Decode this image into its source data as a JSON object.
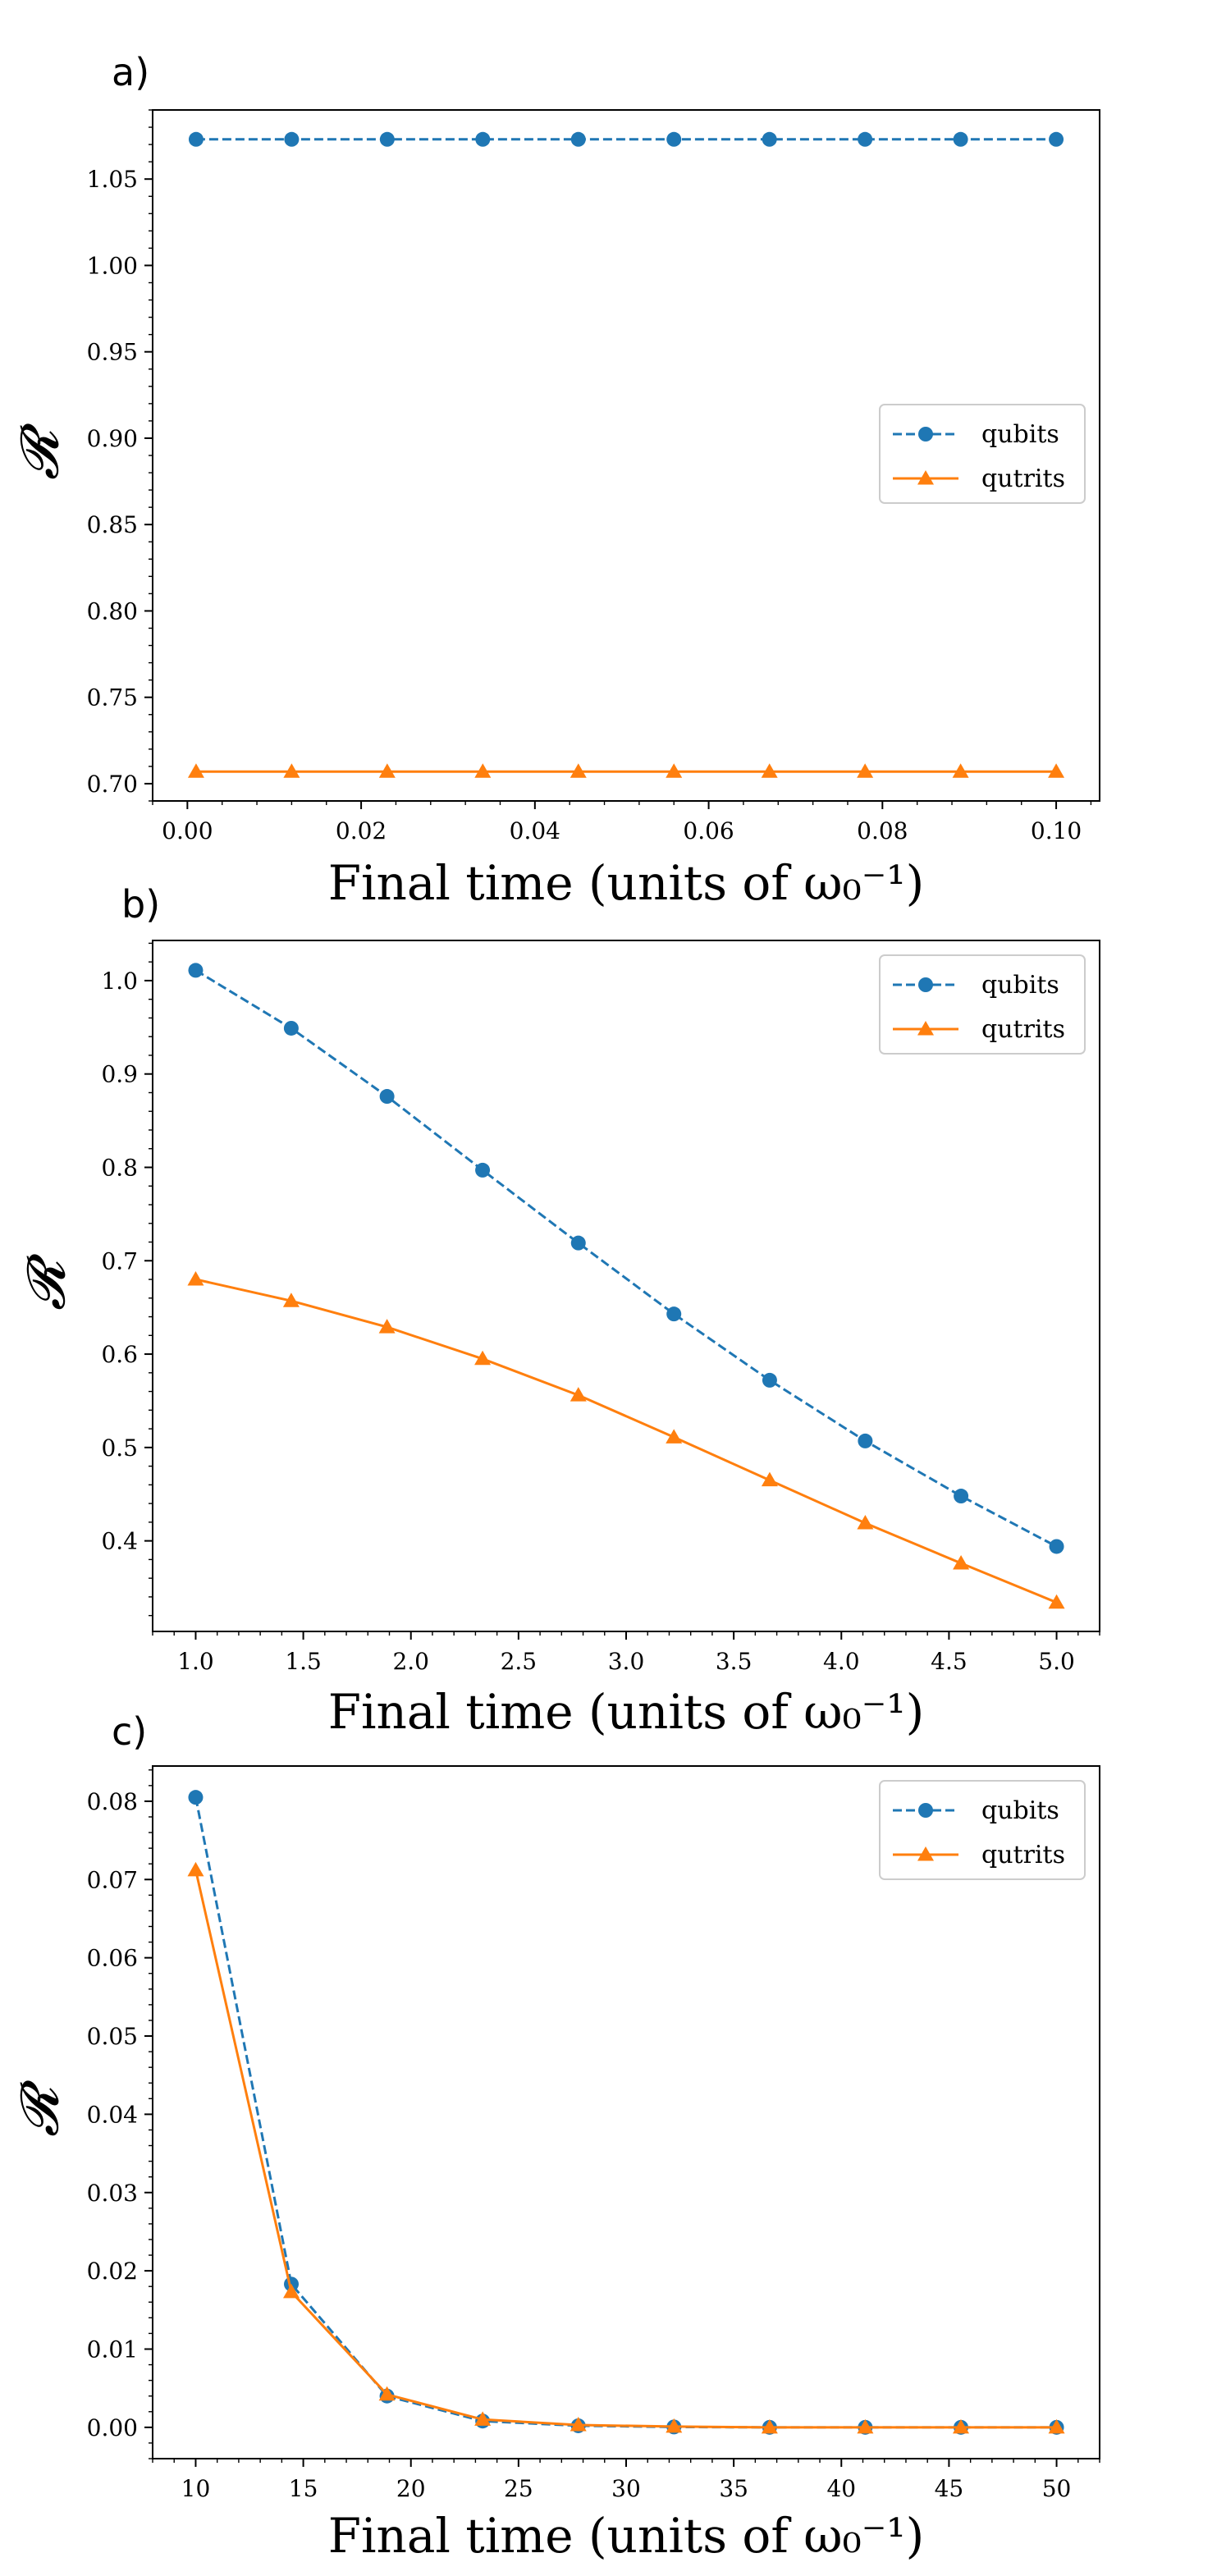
{
  "colors": {
    "qubits": "#1f77b4",
    "qutrits": "#ff7f0e"
  },
  "chart_data": [
    {
      "type": "line",
      "panel_label": "a)",
      "xlabel": "Final time (units of ω₀⁻¹)",
      "ylabel": "𝓡",
      "xlim": [
        -0.004,
        0.105
      ],
      "ylim": [
        0.69,
        1.09
      ],
      "xticks": [
        0.0,
        0.02,
        0.04,
        0.06,
        0.08,
        0.1
      ],
      "xtick_labels": [
        "0.00",
        "0.02",
        "0.04",
        "0.06",
        "0.08",
        "0.10"
      ],
      "yticks": [
        0.7,
        0.75,
        0.8,
        0.85,
        0.9,
        0.95,
        1.0,
        1.05
      ],
      "ytick_labels": [
        "0.70",
        "0.75",
        "0.80",
        "0.85",
        "0.90",
        "0.95",
        "1.00",
        "1.05"
      ],
      "legend": "center-right",
      "x": [
        0.001,
        0.012,
        0.023,
        0.034,
        0.045,
        0.056,
        0.067,
        0.078,
        0.089,
        0.1
      ],
      "series": [
        {
          "name": "qubits",
          "style": "dashed",
          "marker": "circle",
          "values": [
            1.073,
            1.073,
            1.073,
            1.073,
            1.073,
            1.073,
            1.073,
            1.073,
            1.073,
            1.073
          ]
        },
        {
          "name": "qutrits",
          "style": "solid",
          "marker": "triangle",
          "values": [
            0.707,
            0.707,
            0.707,
            0.707,
            0.707,
            0.707,
            0.707,
            0.707,
            0.707,
            0.707
          ]
        }
      ]
    },
    {
      "type": "line",
      "panel_label": "b)",
      "xlabel": "Final time (units of ω₀⁻¹)",
      "ylabel": "𝓡",
      "xlim": [
        0.8,
        5.2
      ],
      "ylim": [
        0.303,
        1.043
      ],
      "xticks": [
        1.0,
        1.5,
        2.0,
        2.5,
        3.0,
        3.5,
        4.0,
        4.5,
        5.0
      ],
      "xtick_labels": [
        "1.0",
        "1.5",
        "2.0",
        "2.5",
        "3.0",
        "3.5",
        "4.0",
        "4.5",
        "5.0"
      ],
      "yticks": [
        0.4,
        0.5,
        0.6,
        0.7,
        0.8,
        0.9,
        1.0
      ],
      "ytick_labels": [
        "0.4",
        "0.5",
        "0.6",
        "0.7",
        "0.8",
        "0.9",
        "1.0"
      ],
      "legend": "top-right",
      "x": [
        1.0,
        1.444,
        1.889,
        2.333,
        2.778,
        3.222,
        3.667,
        4.111,
        4.556,
        5.0
      ],
      "series": [
        {
          "name": "qubits",
          "style": "dashed",
          "marker": "circle",
          "values": [
            1.011,
            0.949,
            0.876,
            0.797,
            0.719,
            0.643,
            0.572,
            0.507,
            0.448,
            0.394
          ]
        },
        {
          "name": "qutrits",
          "style": "solid",
          "marker": "triangle",
          "values": [
            0.68,
            0.657,
            0.629,
            0.595,
            0.556,
            0.511,
            0.465,
            0.419,
            0.376,
            0.334
          ]
        }
      ]
    },
    {
      "type": "line",
      "panel_label": "c)",
      "xlabel": "Final time (units of ω₀⁻¹)",
      "ylabel": "𝓡",
      "xlim": [
        8,
        52
      ],
      "ylim": [
        -0.004,
        0.0845
      ],
      "xticks": [
        10,
        15,
        20,
        25,
        30,
        35,
        40,
        45,
        50
      ],
      "xtick_labels": [
        "10",
        "15",
        "20",
        "25",
        "30",
        "35",
        "40",
        "45",
        "50"
      ],
      "yticks": [
        0.0,
        0.01,
        0.02,
        0.03,
        0.04,
        0.05,
        0.06,
        0.07,
        0.08
      ],
      "ytick_labels": [
        "0.00",
        "0.01",
        "0.02",
        "0.03",
        "0.04",
        "0.05",
        "0.06",
        "0.07",
        "0.08"
      ],
      "legend": "top-right",
      "x": [
        10,
        14.444,
        18.889,
        23.333,
        27.778,
        32.222,
        36.667,
        41.111,
        45.556,
        50
      ],
      "series": [
        {
          "name": "qubits",
          "style": "dashed",
          "marker": "circle",
          "values": [
            0.0805,
            0.0183,
            0.004,
            0.0008,
            0.0002,
            5e-05,
            0.0,
            0.0,
            0.0,
            0.0
          ]
        },
        {
          "name": "qutrits",
          "style": "solid",
          "marker": "triangle",
          "values": [
            0.0712,
            0.0173,
            0.0042,
            0.001,
            0.0003,
            0.0001,
            0.0,
            0.0,
            0.0,
            0.0
          ]
        }
      ]
    }
  ]
}
